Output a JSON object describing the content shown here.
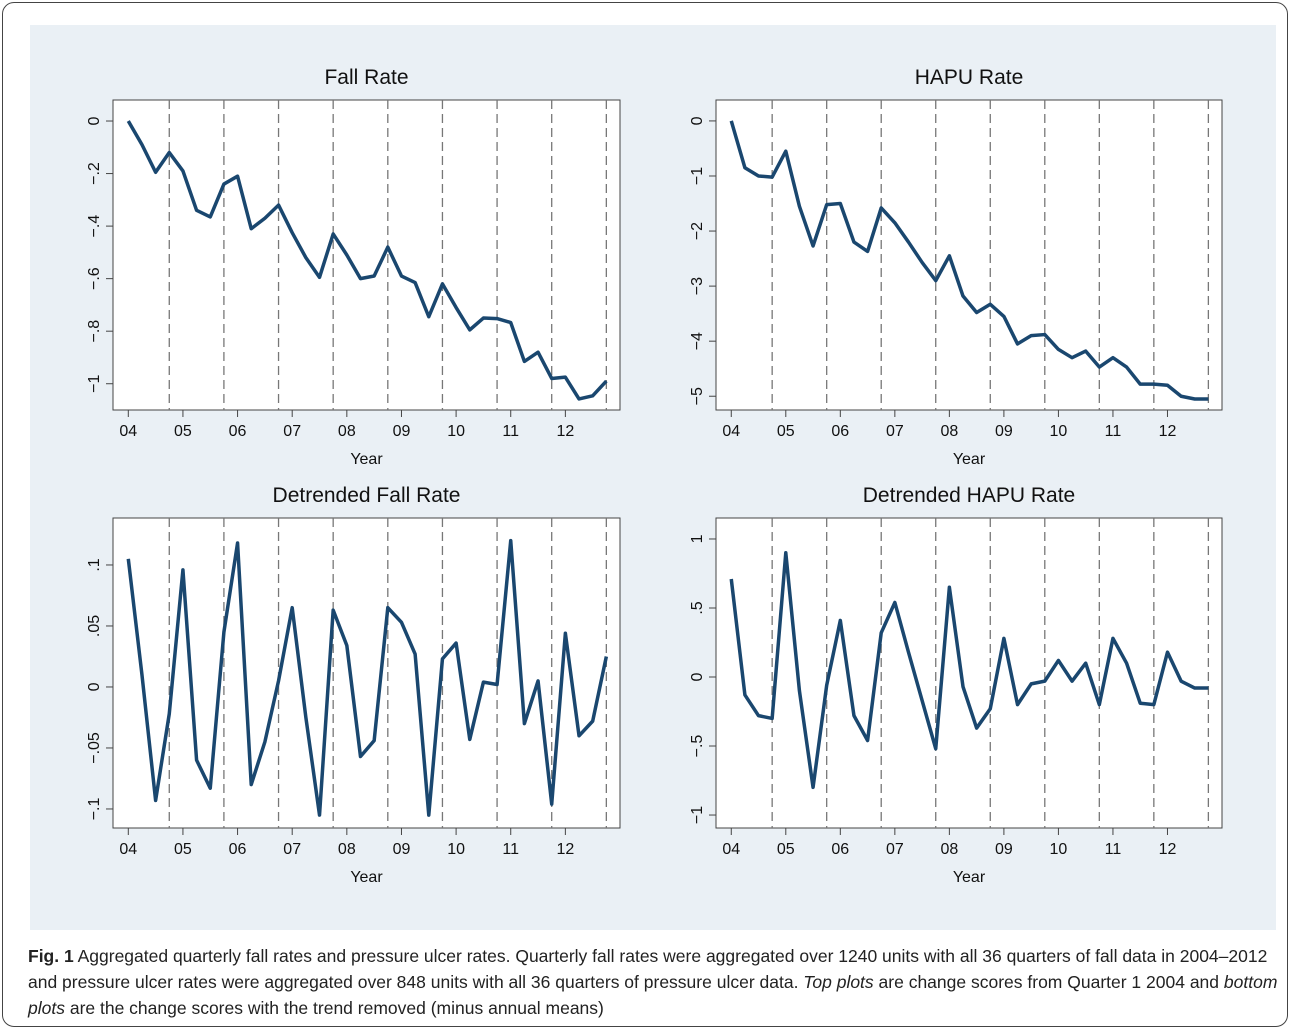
{
  "chart_data": [
    {
      "type": "line",
      "title": "Fall Rate",
      "xlabel": "Year",
      "color": "#1a476f",
      "x": [
        4,
        4.25,
        4.5,
        4.75,
        5,
        5.25,
        5.5,
        5.75,
        6,
        6.25,
        6.5,
        6.75,
        7,
        7.25,
        7.5,
        7.75,
        8,
        8.25,
        8.5,
        8.75,
        9,
        9.25,
        9.5,
        9.75,
        10,
        10.25,
        10.5,
        10.75,
        11,
        11.25,
        11.5,
        11.75,
        12,
        12.25,
        12.5,
        12.75
      ],
      "values": [
        0,
        -0.09,
        -0.195,
        -0.12,
        -0.19,
        -0.34,
        -0.365,
        -0.24,
        -0.21,
        -0.41,
        -0.37,
        -0.32,
        -0.425,
        -0.52,
        -0.595,
        -0.43,
        -0.51,
        -0.6,
        -0.59,
        -0.48,
        -0.59,
        -0.615,
        -0.745,
        -0.62,
        -0.71,
        -0.795,
        -0.75,
        -0.752,
        -0.767,
        -0.915,
        -0.88,
        -0.98,
        -0.975,
        -1.058,
        -1.046,
        -0.99
      ],
      "xlim": [
        3.72,
        13.0
      ],
      "ylim": [
        -1.1,
        0.08
      ],
      "xticks": [
        {
          "value": 4,
          "label": "04"
        },
        {
          "value": 5,
          "label": "05"
        },
        {
          "value": 6,
          "label": "06"
        },
        {
          "value": 7,
          "label": "07"
        },
        {
          "value": 8,
          "label": "08"
        },
        {
          "value": 9,
          "label": "09"
        },
        {
          "value": 10,
          "label": "10"
        },
        {
          "value": 11,
          "label": "11"
        },
        {
          "value": 12,
          "label": "12"
        }
      ],
      "yticks": [
        0,
        {
          "value": -0.2,
          "label": "−.2"
        },
        {
          "value": -0.4,
          "label": "−.4"
        },
        {
          "value": -0.6,
          "label": "−.6"
        },
        {
          "value": -0.8,
          "label": "−.8"
        },
        {
          "value": -1,
          "label": "−1"
        }
      ],
      "vlines": [
        4.75,
        5.75,
        6.75,
        7.75,
        8.75,
        9.75,
        10.75,
        11.75,
        12.75
      ]
    },
    {
      "type": "line",
      "title": "HAPU Rate",
      "xlabel": "Year",
      "color": "#1a476f",
      "x": [
        4,
        4.25,
        4.5,
        4.75,
        5,
        5.25,
        5.5,
        5.75,
        6,
        6.25,
        6.5,
        6.75,
        7,
        7.25,
        7.5,
        7.75,
        8,
        8.25,
        8.5,
        8.75,
        9,
        9.25,
        9.5,
        9.75,
        10,
        10.25,
        10.5,
        10.75,
        11,
        11.25,
        11.5,
        11.75,
        12,
        12.25,
        12.5,
        12.75
      ],
      "values": [
        0,
        -0.85,
        -1.0,
        -1.02,
        -0.55,
        -1.55,
        -2.27,
        -1.52,
        -1.5,
        -2.2,
        -2.37,
        -1.58,
        -1.85,
        -2.2,
        -2.57,
        -2.9,
        -2.45,
        -3.18,
        -3.48,
        -3.33,
        -3.55,
        -4.05,
        -3.9,
        -3.88,
        -4.15,
        -4.3,
        -4.18,
        -4.47,
        -4.3,
        -4.47,
        -4.78,
        -4.78,
        -4.8,
        -5.0,
        -5.05,
        -5.05
      ],
      "xlim": [
        3.72,
        13.0
      ],
      "ylim": [
        -5.25,
        0.38
      ],
      "xticks": [
        {
          "value": 4,
          "label": "04"
        },
        {
          "value": 5,
          "label": "05"
        },
        {
          "value": 6,
          "label": "06"
        },
        {
          "value": 7,
          "label": "07"
        },
        {
          "value": 8,
          "label": "08"
        },
        {
          "value": 9,
          "label": "09"
        },
        {
          "value": 10,
          "label": "10"
        },
        {
          "value": 11,
          "label": "11"
        },
        {
          "value": 12,
          "label": "12"
        }
      ],
      "yticks": [
        0,
        {
          "value": -1,
          "label": "−1"
        },
        {
          "value": -2,
          "label": "−2"
        },
        {
          "value": -3,
          "label": "−3"
        },
        {
          "value": -4,
          "label": "−4"
        },
        {
          "value": -5,
          "label": "−5"
        }
      ],
      "vlines": [
        4.75,
        5.75,
        6.75,
        7.75,
        8.75,
        9.75,
        10.75,
        11.75,
        12.75
      ]
    },
    {
      "type": "line",
      "title": "Detrended Fall Rate",
      "xlabel": "Year",
      "color": "#1a476f",
      "x": [
        4,
        4.25,
        4.5,
        4.75,
        5,
        5.25,
        5.5,
        5.75,
        6,
        6.25,
        6.5,
        6.75,
        7,
        7.25,
        7.5,
        7.75,
        8,
        8.25,
        8.5,
        8.75,
        9,
        9.25,
        9.5,
        9.75,
        10,
        10.25,
        10.5,
        10.75,
        11,
        11.25,
        11.5,
        11.75,
        12,
        12.25,
        12.5,
        12.75
      ],
      "values": [
        0.105,
        0.01,
        -0.093,
        -0.022,
        0.096,
        -0.06,
        -0.083,
        0.045,
        0.118,
        -0.08,
        -0.045,
        0.005,
        0.065,
        -0.025,
        -0.105,
        0.063,
        0.034,
        -0.057,
        -0.044,
        0.065,
        0.053,
        0.027,
        -0.105,
        0.023,
        0.036,
        -0.043,
        0.004,
        0.002,
        0.12,
        -0.03,
        0.005,
        -0.096,
        0.044,
        -0.04,
        -0.028,
        0.025
      ],
      "xlim": [
        3.72,
        13.0
      ],
      "ylim": [
        -0.1156,
        0.1385
      ],
      "xticks": [
        {
          "value": 4,
          "label": "04"
        },
        {
          "value": 5,
          "label": "05"
        },
        {
          "value": 6,
          "label": "06"
        },
        {
          "value": 7,
          "label": "07"
        },
        {
          "value": 8,
          "label": "08"
        },
        {
          "value": 9,
          "label": "09"
        },
        {
          "value": 10,
          "label": "10"
        },
        {
          "value": 11,
          "label": "11"
        },
        {
          "value": 12,
          "label": "12"
        }
      ],
      "yticks": [
        {
          "value": -0.1,
          "label": "−.1"
        },
        {
          "value": -0.05,
          "label": "−.05"
        },
        0,
        {
          "value": 0.05,
          "label": ".05"
        },
        {
          "value": 0.1,
          "label": ".1"
        }
      ],
      "vlines": [
        4.75,
        5.75,
        6.75,
        7.75,
        8.75,
        9.75,
        10.75,
        11.75,
        12.75
      ]
    },
    {
      "type": "line",
      "title": "Detrended HAPU Rate",
      "xlabel": "Year",
      "color": "#1a476f",
      "x": [
        4,
        4.25,
        4.5,
        4.75,
        5,
        5.25,
        5.5,
        5.75,
        6,
        6.25,
        6.5,
        6.75,
        7,
        7.25,
        7.5,
        7.75,
        8,
        8.25,
        8.5,
        8.75,
        9,
        9.25,
        9.5,
        9.75,
        10,
        10.25,
        10.5,
        10.75,
        11,
        11.25,
        11.5,
        11.75,
        12,
        12.25,
        12.5,
        12.75
      ],
      "values": [
        0.71,
        -0.13,
        -0.28,
        -0.3,
        0.9,
        -0.1,
        -0.8,
        -0.06,
        0.41,
        -0.28,
        -0.46,
        0.32,
        0.54,
        0.18,
        -0.17,
        -0.52,
        0.65,
        -0.07,
        -0.37,
        -0.23,
        0.28,
        -0.2,
        -0.05,
        -0.03,
        0.12,
        -0.03,
        0.1,
        -0.2,
        0.28,
        0.1,
        -0.19,
        -0.2,
        0.18,
        -0.03,
        -0.08,
        -0.08
      ],
      "xlim": [
        3.72,
        13.0
      ],
      "ylim": [
        -1.094,
        1.152
      ],
      "xticks": [
        {
          "value": 4,
          "label": "04"
        },
        {
          "value": 5,
          "label": "05"
        },
        {
          "value": 6,
          "label": "06"
        },
        {
          "value": 7,
          "label": "07"
        },
        {
          "value": 8,
          "label": "08"
        },
        {
          "value": 9,
          "label": "09"
        },
        {
          "value": 10,
          "label": "10"
        },
        {
          "value": 11,
          "label": "11"
        },
        {
          "value": 12,
          "label": "12"
        }
      ],
      "yticks": [
        {
          "value": -1,
          "label": "−1"
        },
        {
          "value": -0.5,
          "label": "−.5"
        },
        0,
        {
          "value": 0.5,
          "label": ".5"
        },
        1
      ],
      "vlines": [
        4.75,
        5.75,
        6.75,
        7.75,
        8.75,
        9.75,
        10.75,
        11.75,
        12.75
      ]
    }
  ],
  "caption": {
    "label": "Fig. 1",
    "segments": [
      " Aggregated quarterly fall rates and pressure ulcer rates. Quarterly fall rates were aggregated over 1240 units with all 36 quarters of fall data in 2004–2012 and pressure ulcer rates were aggregated over 848 units with all 36 quarters of pressure ulcer data. ",
      "Top plots",
      " are change scores from Quarter 1 2004 and ",
      "bottom plots",
      " are the change scores with the trend removed (minus annual means)"
    ]
  }
}
